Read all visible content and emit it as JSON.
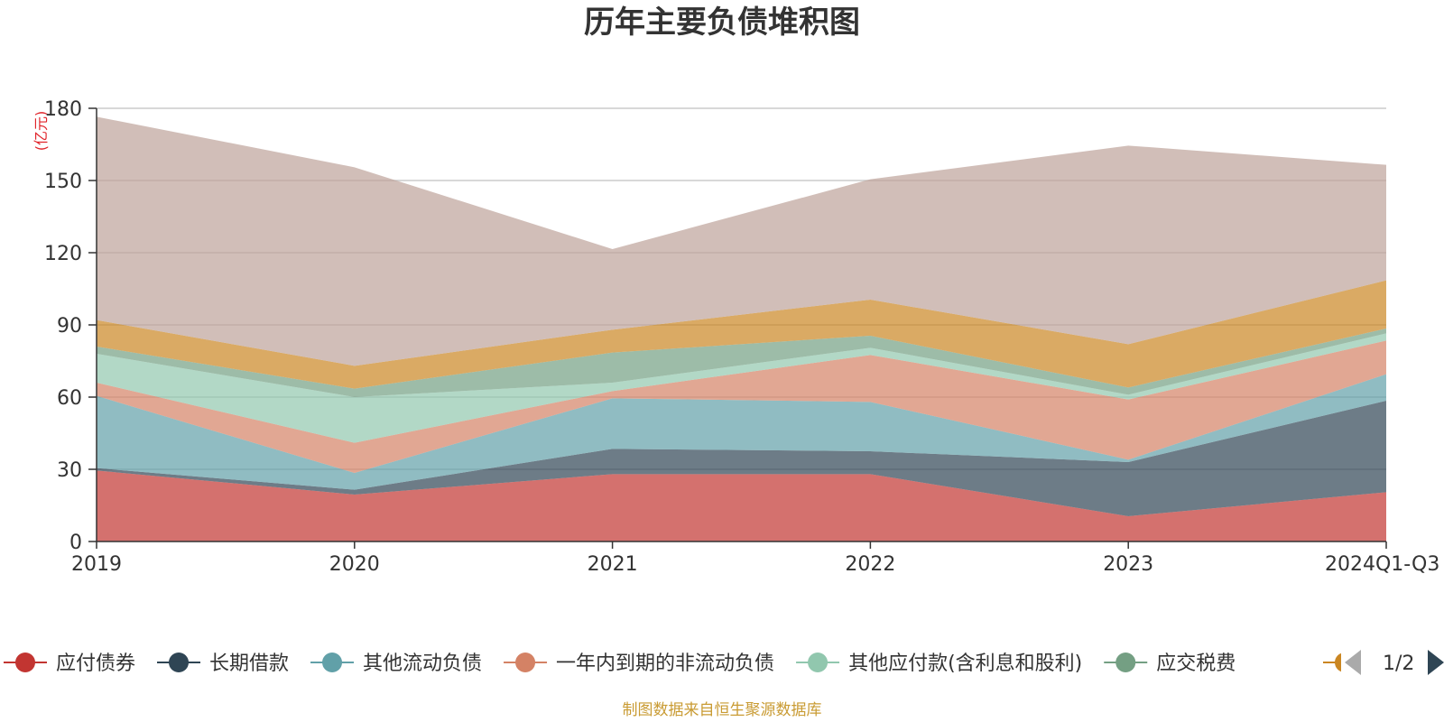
{
  "colors": {
    "axis": "#333333",
    "grid": "#cccccc",
    "title": "#333333",
    "unit": "#e0242a",
    "source": "#c99b33",
    "pager_active": "#2f4554",
    "pager_inactive": "#aaaaaa"
  },
  "legend_page": "1/2",
  "source_note": "制图数据来自恒生聚源数据库",
  "chart_data": {
    "type": "area",
    "stacked": true,
    "title": "历年主要负债堆积图",
    "ylabel": "(亿元)",
    "categories": [
      "2019",
      "2020",
      "2021",
      "2022",
      "2023",
      "2024Q1-Q3"
    ],
    "ylim": [
      0,
      180
    ],
    "yticks": [
      0,
      30,
      60,
      90,
      120,
      150,
      180
    ],
    "grid": true,
    "legend_position": "bottom",
    "series": [
      {
        "name": "应付债券",
        "color": "#c23531",
        "values": [
          29.5,
          19.5,
          28,
          28,
          10.5,
          20.5
        ]
      },
      {
        "name": "长期借款",
        "color": "#2f4554",
        "values": [
          1,
          2,
          10.5,
          9.5,
          22.5,
          38
        ]
      },
      {
        "name": "其他流动负债",
        "color": "#61a0a8",
        "values": [
          30,
          7,
          21,
          20.5,
          1,
          11
        ]
      },
      {
        "name": "一年内到期的非流动负债",
        "color": "#d48265",
        "values": [
          5.5,
          12.5,
          3,
          19.5,
          25,
          14
        ]
      },
      {
        "name": "其他应付款(含利息和股利)",
        "color": "#91c7ae",
        "values": [
          12,
          19,
          3.5,
          3,
          2,
          3
        ]
      },
      {
        "name": "应交税费",
        "color": "#749f83",
        "values": [
          3,
          3.5,
          12.5,
          5,
          3,
          2
        ]
      },
      {
        "name": "",
        "color": "#ca8622",
        "values": [
          11,
          9.5,
          9.5,
          15,
          18,
          20
        ]
      },
      {
        "name": "",
        "color": "#bda29a",
        "values": [
          84.5,
          82.5,
          33.5,
          50,
          82.5,
          48
        ]
      }
    ]
  }
}
